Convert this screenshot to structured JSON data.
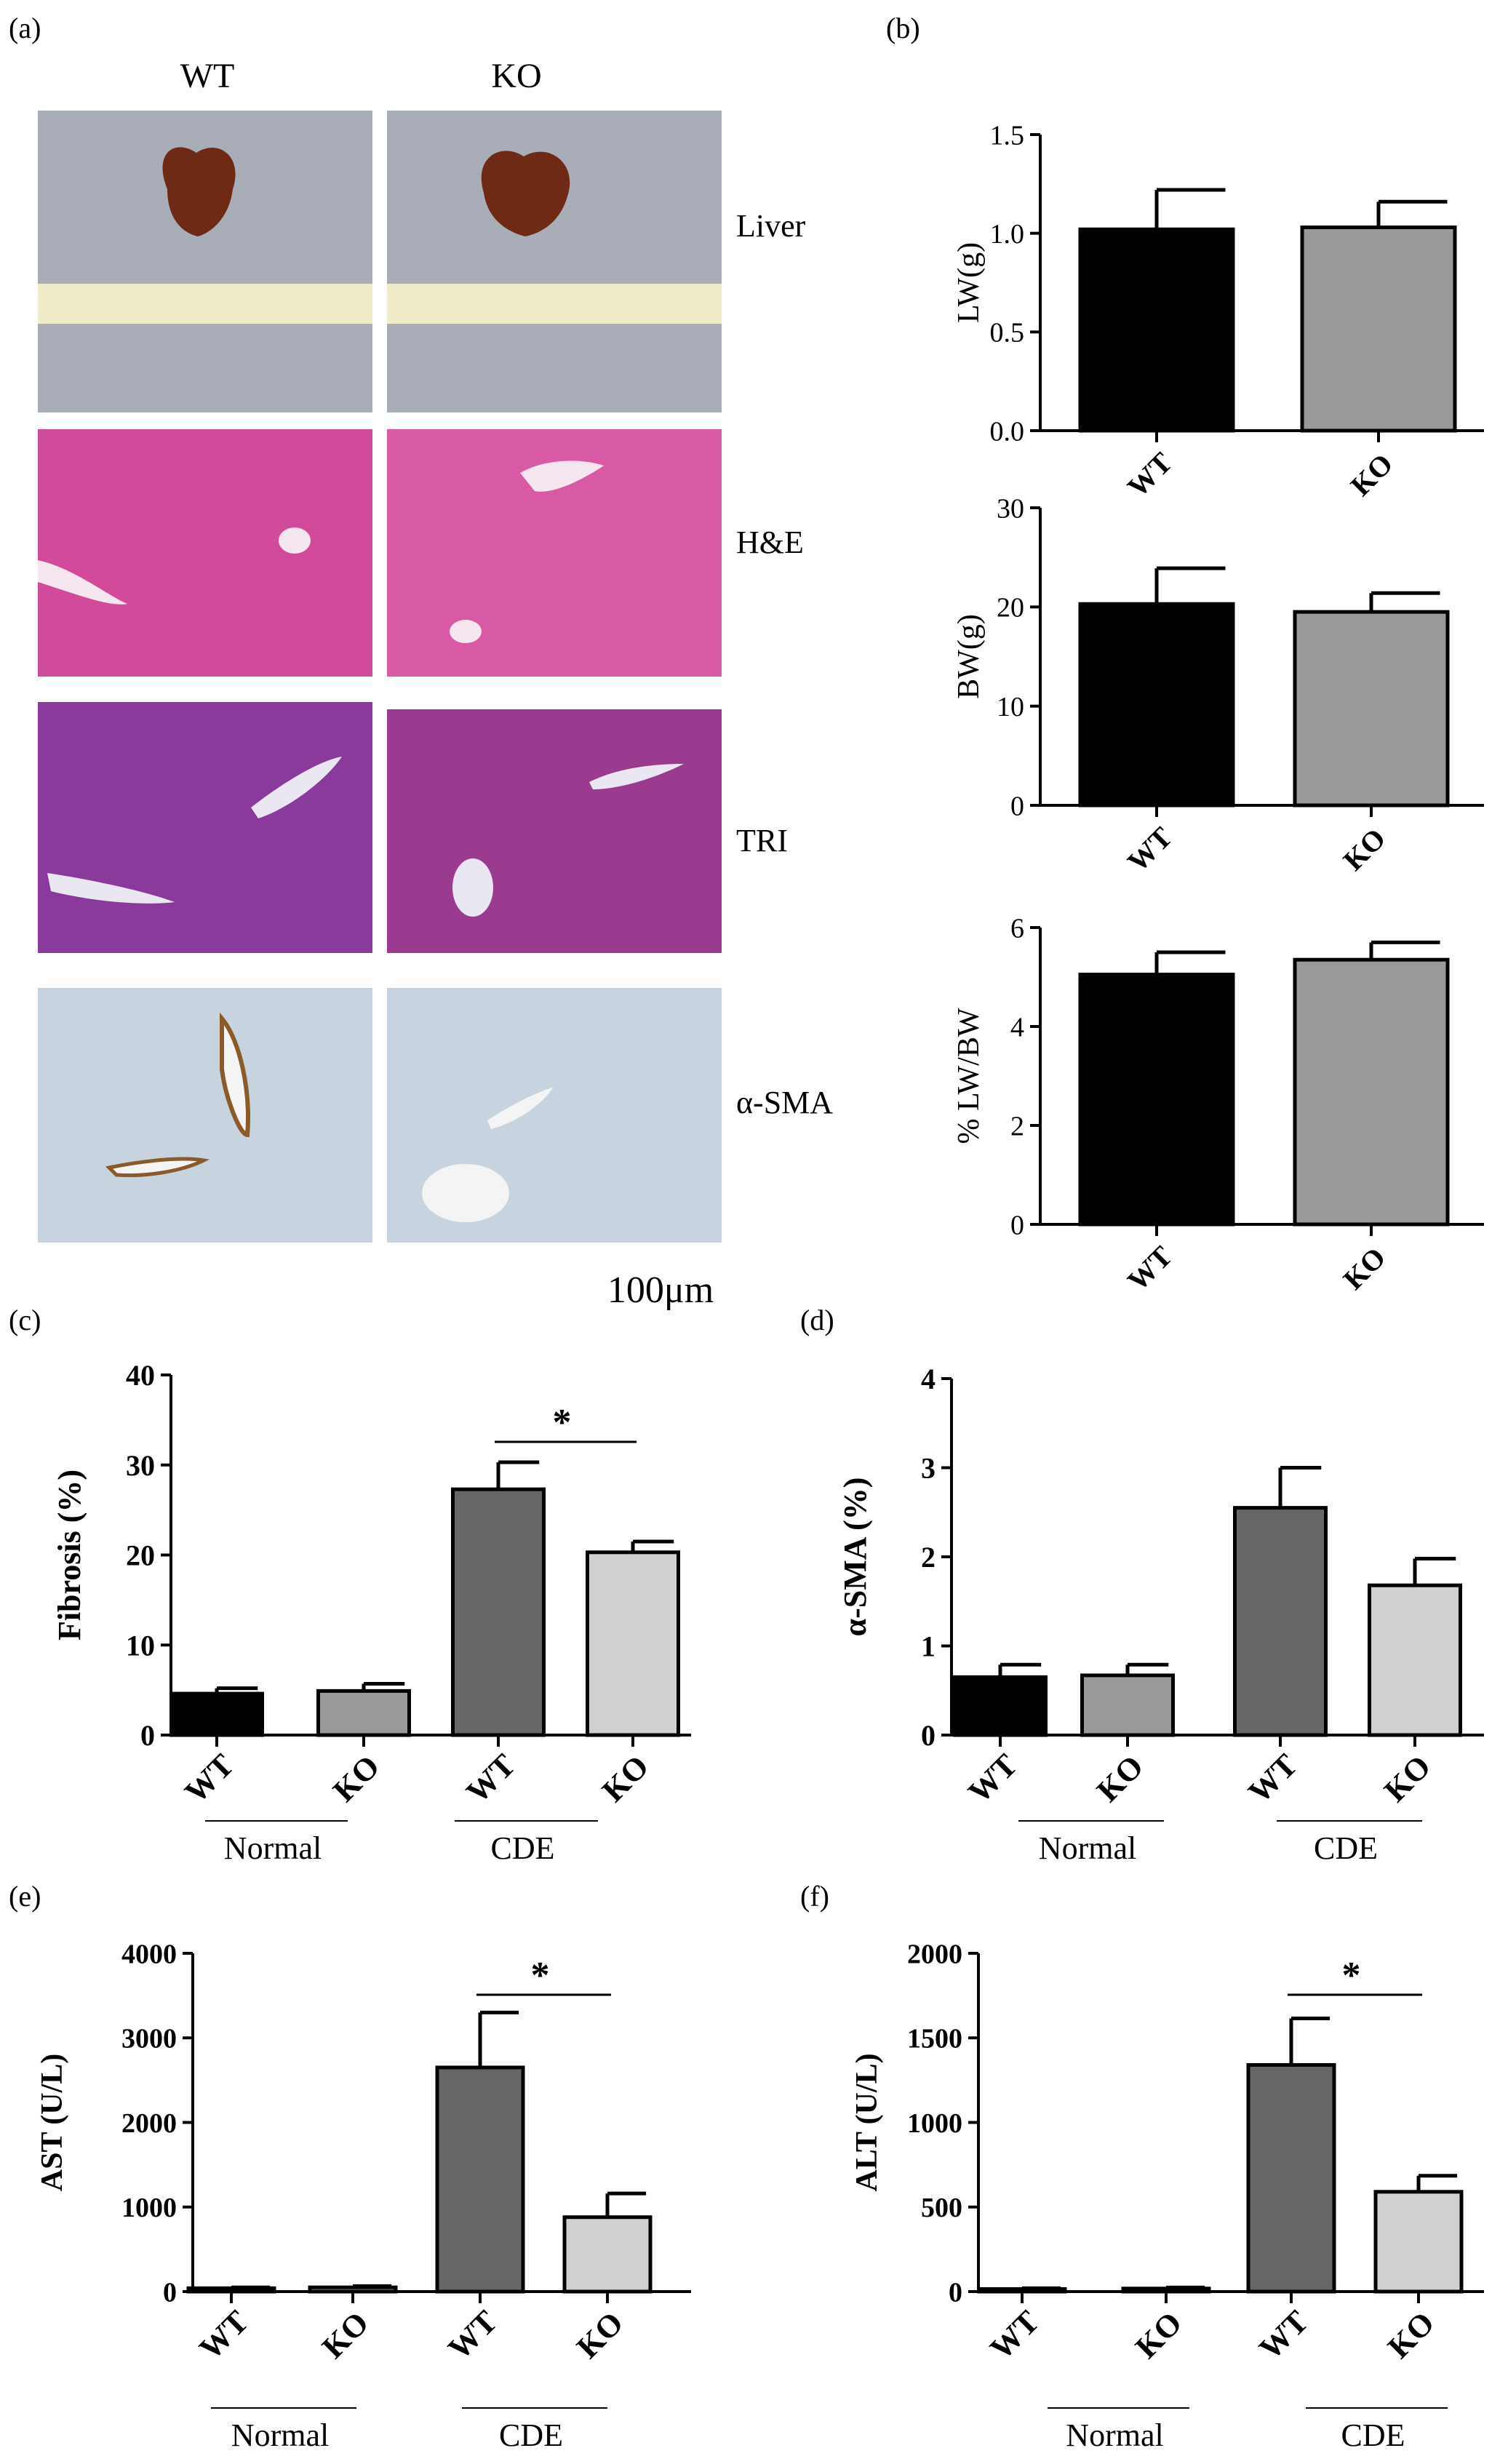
{
  "panel_letters": {
    "a": "(a)",
    "b": "(b)",
    "c": "(c)",
    "d": "(d)",
    "e": "(e)",
    "f": "(f)"
  },
  "panel_a": {
    "columns": [
      "WT",
      "KO"
    ],
    "rows": [
      "Liver",
      "H&E",
      "TRI",
      "α-SMA"
    ],
    "scale_bar": "100μm",
    "colors": {
      "cloth": "#a9adb8",
      "ruler": "#f0ecc8",
      "liver": "#6e2a15",
      "he": "#d24a9a",
      "tri": "#8a3a9a",
      "sma": "#c7d3df"
    }
  },
  "chart_data": [
    {
      "id": "b1",
      "type": "bar",
      "categories": [
        "WT",
        "KO"
      ],
      "values": [
        1.02,
        1.03
      ],
      "errors": [
        0.2,
        0.13
      ],
      "ylabel": "LW(g)",
      "ylim": [
        0,
        1.5
      ],
      "yticks": [
        "0.0",
        "0.5",
        "1.0",
        "1.5"
      ],
      "colors": [
        "#000000",
        "#999999"
      ]
    },
    {
      "id": "b2",
      "type": "bar",
      "categories": [
        "WT",
        "KO"
      ],
      "values": [
        20.3,
        19.5
      ],
      "errors": [
        3.6,
        1.9
      ],
      "ylabel": "BW(g)",
      "ylim": [
        0,
        30
      ],
      "yticks": [
        "0",
        "10",
        "20",
        "30"
      ],
      "colors": [
        "#000000",
        "#999999"
      ]
    },
    {
      "id": "b3",
      "type": "bar",
      "categories": [
        "WT",
        "KO"
      ],
      "values": [
        5.05,
        5.35
      ],
      "errors": [
        0.45,
        0.35
      ],
      "ylabel": "% LW/BW",
      "ylim": [
        0,
        6
      ],
      "yticks": [
        "0",
        "2",
        "4",
        "6"
      ],
      "colors": [
        "#000000",
        "#999999"
      ]
    },
    {
      "id": "c",
      "type": "bar",
      "categories": [
        "WT",
        "KO",
        "WT",
        "KO"
      ],
      "values": [
        4.6,
        4.9,
        27.3,
        20.3
      ],
      "errors": [
        0.6,
        0.8,
        3.0,
        1.2
      ],
      "ylabel": "Fibrosis (%)",
      "ylim": [
        0,
        40
      ],
      "yticks": [
        "0",
        "10",
        "20",
        "30",
        "40"
      ],
      "groups": [
        "Normal",
        "CDE"
      ],
      "significance": "*",
      "colors": [
        "#000000",
        "#999999",
        "#666666",
        "#d0d0d0"
      ]
    },
    {
      "id": "d",
      "type": "bar",
      "categories": [
        "WT",
        "KO",
        "WT",
        "KO"
      ],
      "values": [
        0.65,
        0.67,
        2.55,
        1.68
      ],
      "errors": [
        0.14,
        0.12,
        0.45,
        0.3
      ],
      "ylabel": "α-SMA (%)",
      "ylim": [
        0,
        4
      ],
      "yticks": [
        "0",
        "1",
        "2",
        "3",
        "4"
      ],
      "groups": [
        "Normal",
        "CDE"
      ],
      "colors": [
        "#000000",
        "#999999",
        "#666666",
        "#d0d0d0"
      ]
    },
    {
      "id": "e",
      "type": "bar",
      "categories": [
        "WT",
        "KO",
        "WT",
        "KO"
      ],
      "values": [
        40,
        50,
        2650,
        880
      ],
      "errors": [
        10,
        15,
        650,
        280
      ],
      "ylabel": "AST (U/L)",
      "ylim": [
        0,
        4000
      ],
      "yticks": [
        "0",
        "1000",
        "2000",
        "3000",
        "4000"
      ],
      "groups": [
        "Normal",
        "CDE"
      ],
      "significance": "*",
      "colors": [
        "#000000",
        "#999999",
        "#666666",
        "#d0d0d0"
      ]
    },
    {
      "id": "f",
      "type": "bar",
      "categories": [
        "WT",
        "KO",
        "WT",
        "KO"
      ],
      "values": [
        15,
        18,
        1340,
        590
      ],
      "errors": [
        5,
        6,
        275,
        95
      ],
      "ylabel": "ALT (U/L)",
      "ylim": [
        0,
        2000
      ],
      "yticks": [
        "0",
        "500",
        "1000",
        "1500",
        "2000"
      ],
      "groups": [
        "Normal",
        "CDE"
      ],
      "significance": "*",
      "colors": [
        "#000000",
        "#999999",
        "#666666",
        "#d0d0d0"
      ]
    }
  ]
}
